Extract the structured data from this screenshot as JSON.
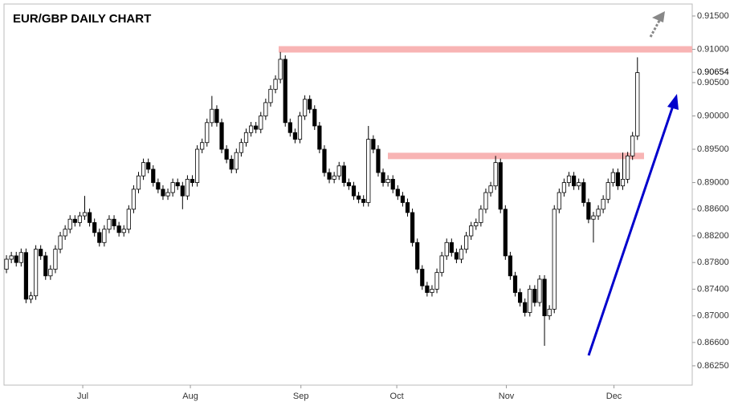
{
  "chart_data": {
    "type": "candlestick",
    "title": "EUR/GBP DAILY CHART",
    "open": [
      0.877,
      0.8785,
      0.879,
      0.878,
      0.8795,
      0.8725,
      0.873,
      0.88,
      0.879,
      0.876,
      0.877,
      0.88,
      0.882,
      0.883,
      0.8845,
      0.884,
      0.885,
      0.8855,
      0.884,
      0.8825,
      0.881,
      0.883,
      0.8845,
      0.8835,
      0.8825,
      0.883,
      0.886,
      0.889,
      0.891,
      0.893,
      0.892,
      0.89,
      0.889,
      0.888,
      0.8885,
      0.89,
      0.8895,
      0.888,
      0.8905,
      0.89,
      0.895,
      0.896,
      0.899,
      0.901,
      0.899,
      0.895,
      0.8935,
      0.892,
      0.8945,
      0.896,
      0.8975,
      0.8985,
      0.898,
      0.9,
      0.902,
      0.904,
      0.9055,
      0.9085,
      0.899,
      0.8975,
      0.8965,
      0.9,
      0.9025,
      0.901,
      0.8985,
      0.895,
      0.8915,
      0.8905,
      0.891,
      0.8925,
      0.89,
      0.8895,
      0.888,
      0.8875,
      0.887,
      0.8965,
      0.895,
      0.8915,
      0.89,
      0.8905,
      0.889,
      0.888,
      0.887,
      0.8855,
      0.881,
      0.877,
      0.8745,
      0.8735,
      0.874,
      0.8765,
      0.879,
      0.881,
      0.8795,
      0.8785,
      0.88,
      0.882,
      0.8835,
      0.884,
      0.886,
      0.8885,
      0.8895,
      0.893,
      0.886,
      0.879,
      0.876,
      0.8735,
      0.872,
      0.8705,
      0.874,
      0.872,
      0.8755,
      0.87,
      0.871,
      0.886,
      0.8885,
      0.89,
      0.891,
      0.8895,
      0.89,
      0.887,
      0.8845,
      0.885,
      0.886,
      0.8875,
      0.89,
      0.8915,
      0.8895,
      0.8905,
      0.894,
      0.897
    ],
    "high": [
      0.8791,
      0.8796,
      0.8796,
      0.8801,
      0.8801,
      0.8736,
      0.8806,
      0.8806,
      0.8796,
      0.8776,
      0.8806,
      0.8826,
      0.8836,
      0.8851,
      0.8851,
      0.8856,
      0.888,
      0.8861,
      0.8846,
      0.8831,
      0.8836,
      0.8851,
      0.8851,
      0.8841,
      0.8836,
      0.8866,
      0.8896,
      0.8916,
      0.8936,
      0.8936,
      0.8926,
      0.8906,
      0.8896,
      0.8891,
      0.8906,
      0.8906,
      0.8901,
      0.8911,
      0.8911,
      0.8956,
      0.8966,
      0.8996,
      0.903,
      0.9016,
      0.8996,
      0.8956,
      0.8941,
      0.8951,
      0.8966,
      0.8981,
      0.8991,
      0.8991,
      0.9006,
      0.9026,
      0.9046,
      0.9061,
      0.9096,
      0.9091,
      0.8996,
      0.8981,
      0.9006,
      0.9031,
      0.9031,
      0.9016,
      0.8991,
      0.8956,
      0.8921,
      0.8916,
      0.8931,
      0.8931,
      0.8906,
      0.8901,
      0.8886,
      0.8881,
      0.8985,
      0.8971,
      0.8956,
      0.8921,
      0.8911,
      0.8911,
      0.8896,
      0.8886,
      0.8876,
      0.8861,
      0.8816,
      0.8776,
      0.8751,
      0.8746,
      0.8771,
      0.8796,
      0.8816,
      0.8816,
      0.8801,
      0.8806,
      0.8826,
      0.8841,
      0.8846,
      0.8866,
      0.8891,
      0.8901,
      0.894,
      0.8936,
      0.8866,
      0.8796,
      0.8766,
      0.8741,
      0.8726,
      0.8746,
      0.8746,
      0.8761,
      0.8761,
      0.8716,
      0.8866,
      0.8891,
      0.8906,
      0.8916,
      0.8916,
      0.8906,
      0.8906,
      0.8876,
      0.8856,
      0.8866,
      0.8881,
      0.8906,
      0.8921,
      0.8921,
      0.8945,
      0.8946,
      0.8976,
      0.9088
    ],
    "low": [
      0.8764,
      0.8779,
      0.8774,
      0.8774,
      0.8719,
      0.8719,
      0.8724,
      0.8784,
      0.8754,
      0.8754,
      0.8764,
      0.8794,
      0.8814,
      0.8824,
      0.8834,
      0.8834,
      0.8844,
      0.8834,
      0.8819,
      0.8804,
      0.8804,
      0.8824,
      0.8829,
      0.8819,
      0.8819,
      0.8824,
      0.8854,
      0.8884,
      0.8904,
      0.8914,
      0.8894,
      0.8884,
      0.8874,
      0.8874,
      0.8879,
      0.8889,
      0.886,
      0.8874,
      0.8894,
      0.8894,
      0.8944,
      0.8954,
      0.8984,
      0.8984,
      0.8944,
      0.8929,
      0.8914,
      0.8914,
      0.8939,
      0.8954,
      0.8969,
      0.8974,
      0.8974,
      0.8994,
      0.9014,
      0.9034,
      0.9049,
      0.8984,
      0.8969,
      0.8959,
      0.8959,
      0.8994,
      0.9004,
      0.8979,
      0.8944,
      0.8909,
      0.8899,
      0.8899,
      0.8904,
      0.8894,
      0.8889,
      0.8874,
      0.8869,
      0.8864,
      0.8864,
      0.8944,
      0.8909,
      0.8894,
      0.8894,
      0.8884,
      0.8874,
      0.8864,
      0.8849,
      0.8804,
      0.8764,
      0.8739,
      0.8729,
      0.8729,
      0.8734,
      0.8759,
      0.8784,
      0.8789,
      0.8779,
      0.8779,
      0.8794,
      0.8814,
      0.8829,
      0.8834,
      0.8854,
      0.8879,
      0.8889,
      0.8854,
      0.8784,
      0.8754,
      0.8729,
      0.8714,
      0.8699,
      0.8699,
      0.8714,
      0.8714,
      0.8655,
      0.8694,
      0.8704,
      0.8854,
      0.8879,
      0.8894,
      0.8889,
      0.8889,
      0.8864,
      0.8839,
      0.881,
      0.8844,
      0.8854,
      0.8869,
      0.8894,
      0.8889,
      0.8889,
      0.8899,
      0.8934,
      0.8964
    ],
    "close": [
      0.8785,
      0.879,
      0.878,
      0.8795,
      0.8725,
      0.873,
      0.88,
      0.879,
      0.876,
      0.877,
      0.88,
      0.882,
      0.883,
      0.8845,
      0.884,
      0.885,
      0.8855,
      0.884,
      0.8825,
      0.881,
      0.883,
      0.8845,
      0.8835,
      0.8825,
      0.883,
      0.886,
      0.889,
      0.891,
      0.893,
      0.892,
      0.89,
      0.889,
      0.888,
      0.8885,
      0.89,
      0.8895,
      0.888,
      0.8905,
      0.89,
      0.895,
      0.896,
      0.899,
      0.901,
      0.899,
      0.895,
      0.8935,
      0.892,
      0.8945,
      0.896,
      0.8975,
      0.8985,
      0.898,
      0.9,
      0.902,
      0.904,
      0.9055,
      0.9085,
      0.899,
      0.8975,
      0.8965,
      0.9,
      0.9025,
      0.901,
      0.8985,
      0.895,
      0.8915,
      0.8905,
      0.891,
      0.8925,
      0.89,
      0.8895,
      0.888,
      0.8875,
      0.887,
      0.8965,
      0.895,
      0.8915,
      0.89,
      0.8905,
      0.889,
      0.888,
      0.887,
      0.8855,
      0.881,
      0.877,
      0.8745,
      0.8735,
      0.874,
      0.8765,
      0.879,
      0.881,
      0.8795,
      0.8785,
      0.88,
      0.882,
      0.8835,
      0.884,
      0.886,
      0.8885,
      0.8895,
      0.893,
      0.886,
      0.879,
      0.876,
      0.8735,
      0.872,
      0.8705,
      0.874,
      0.872,
      0.8755,
      0.87,
      0.871,
      0.886,
      0.8885,
      0.89,
      0.891,
      0.8895,
      0.89,
      0.887,
      0.8845,
      0.885,
      0.886,
      0.8875,
      0.89,
      0.8915,
      0.8895,
      0.8905,
      0.894,
      0.897,
      0.9065
    ],
    "up_color": "#ffffff",
    "down_color": "#000000",
    "xlim": [
      -0.5,
      140.2
    ],
    "xticks": [
      {
        "value": 15.6,
        "label": "Jul"
      },
      {
        "value": 37.6,
        "label": "Aug"
      },
      {
        "value": 60.2,
        "label": "Sep"
      },
      {
        "value": 79.8,
        "label": "Oct"
      },
      {
        "value": 102.2,
        "label": "Nov"
      },
      {
        "value": 124.2,
        "label": "Dec"
      }
    ],
    "ylim": [
      0.8596,
      0.9168
    ],
    "yticks": [
      {
        "value": 0.915,
        "label": "0.91500"
      },
      {
        "value": 0.91,
        "label": "0.91000"
      },
      {
        "value": 0.905,
        "label": "0.90500"
      },
      {
        "value": 0.9,
        "label": "0.90000"
      },
      {
        "value": 0.895,
        "label": "0.89500"
      },
      {
        "value": 0.89,
        "label": "0.89000"
      },
      {
        "value": 0.886,
        "label": "0.88600"
      },
      {
        "value": 0.882,
        "label": "0.88200"
      },
      {
        "value": 0.878,
        "label": "0.87800"
      },
      {
        "value": 0.874,
        "label": "0.87400"
      },
      {
        "value": 0.87,
        "label": "0.87000"
      },
      {
        "value": 0.866,
        "label": "0.86600"
      },
      {
        "value": 0.8625,
        "label": "0.86250"
      }
    ],
    "last_price": {
      "value": 0.90654,
      "label": "0.90654"
    },
    "levels": [
      0.91,
      0.894
    ],
    "level_color": "#f8b4b4"
  }
}
